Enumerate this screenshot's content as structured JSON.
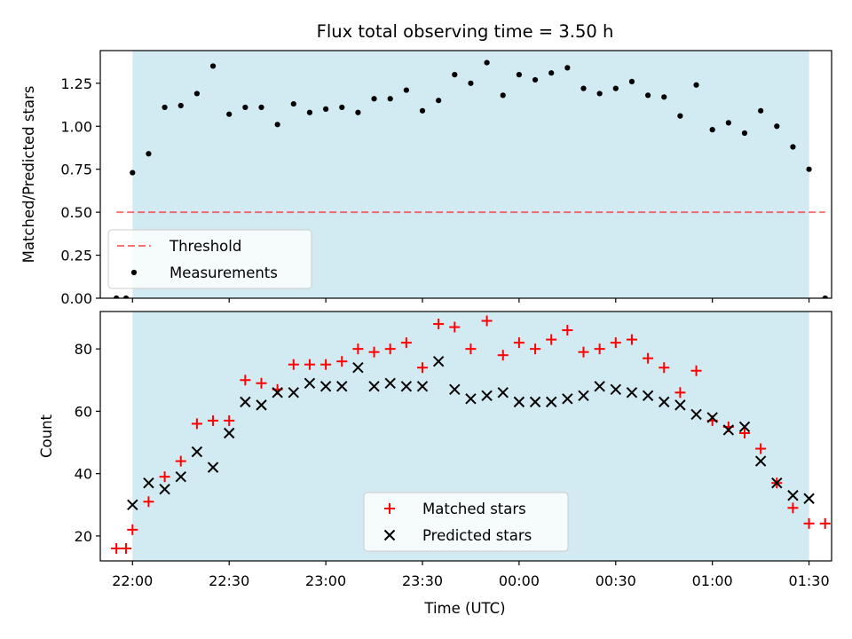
{
  "title": "Flux total observing time = 3.50 h",
  "xlabel": "Time (UTC)",
  "x_tick_labels": [
    "22:00",
    "22:30",
    "23:00",
    "23:30",
    "00:00",
    "00:30",
    "01:00",
    "01:30"
  ],
  "colors": {
    "shade": "#add8e6",
    "threshold": "#ff0000",
    "measurements": "#000000",
    "matched": "#ff0000",
    "predicted": "#000000"
  },
  "chart_data": [
    {
      "type": "scatter",
      "ylabel": "Matched/Predicted stars",
      "xlim": [
        "21:50",
        "01:37"
      ],
      "ylim": [
        0,
        1.44
      ],
      "y_ticks": [
        "0.00",
        "0.25",
        "0.50",
        "0.75",
        "1.00",
        "1.25"
      ],
      "shaded_region": [
        "22:00",
        "01:30"
      ],
      "legend": {
        "position": "lower-left",
        "entries": [
          "Threshold",
          "Measurements"
        ]
      },
      "threshold": {
        "name": "Threshold",
        "y": 0.5,
        "x_range": [
          "21:55",
          "01:35"
        ],
        "style": "dashed"
      },
      "series": [
        {
          "name": "Measurements",
          "x": [
            "21:55",
            "21:58",
            "22:00",
            "22:05",
            "22:10",
            "22:15",
            "22:20",
            "22:25",
            "22:30",
            "22:35",
            "22:40",
            "22:45",
            "22:50",
            "22:55",
            "23:00",
            "23:05",
            "23:10",
            "23:15",
            "23:20",
            "23:25",
            "23:30",
            "23:35",
            "23:40",
            "23:45",
            "23:50",
            "23:55",
            "00:00",
            "00:05",
            "00:10",
            "00:15",
            "00:20",
            "00:25",
            "00:30",
            "00:35",
            "00:40",
            "00:45",
            "00:50",
            "00:55",
            "01:00",
            "01:05",
            "01:10",
            "01:15",
            "01:20",
            "01:25",
            "01:30",
            "01:35"
          ],
          "y": [
            0.0,
            0.0,
            0.73,
            0.84,
            1.11,
            1.12,
            1.19,
            1.35,
            1.07,
            1.11,
            1.11,
            1.01,
            1.13,
            1.08,
            1.1,
            1.11,
            1.08,
            1.16,
            1.16,
            1.21,
            1.09,
            1.15,
            1.3,
            1.25,
            1.37,
            1.18,
            1.3,
            1.27,
            1.31,
            1.34,
            1.22,
            1.19,
            1.22,
            1.26,
            1.18,
            1.17,
            1.06,
            1.24,
            0.98,
            1.02,
            0.96,
            1.09,
            1.0,
            0.88,
            0.75,
            0.0
          ]
        }
      ]
    },
    {
      "type": "scatter",
      "ylabel": "Count",
      "xlim": [
        "21:50",
        "01:37"
      ],
      "ylim": [
        12,
        92
      ],
      "y_ticks": [
        "20",
        "40",
        "60",
        "80"
      ],
      "shaded_region": [
        "22:00",
        "01:30"
      ],
      "legend": {
        "position": "lower-center",
        "entries": [
          "Matched stars",
          "Predicted stars"
        ]
      },
      "series": [
        {
          "name": "Matched stars",
          "marker": "+",
          "x": [
            "21:55",
            "21:58",
            "22:00",
            "22:05",
            "22:10",
            "22:15",
            "22:20",
            "22:25",
            "22:30",
            "22:35",
            "22:40",
            "22:45",
            "22:50",
            "22:55",
            "23:00",
            "23:05",
            "23:10",
            "23:15",
            "23:20",
            "23:25",
            "23:30",
            "23:35",
            "23:40",
            "23:45",
            "23:50",
            "23:55",
            "00:00",
            "00:05",
            "00:10",
            "00:15",
            "00:20",
            "00:25",
            "00:30",
            "00:35",
            "00:40",
            "00:45",
            "00:50",
            "00:55",
            "01:00",
            "01:05",
            "01:10",
            "01:15",
            "01:20",
            "01:25",
            "01:30",
            "01:35"
          ],
          "y": [
            16,
            16,
            22,
            31,
            39,
            44,
            56,
            57,
            57,
            70,
            69,
            67,
            75,
            75,
            75,
            76,
            80,
            79,
            80,
            82,
            74,
            88,
            87,
            80,
            89,
            78,
            82,
            80,
            83,
            86,
            79,
            80,
            82,
            83,
            77,
            74,
            66,
            73,
            57,
            55,
            53,
            48,
            37,
            29,
            24,
            24
          ]
        },
        {
          "name": "Predicted stars",
          "marker": "x",
          "x": [
            "22:00",
            "22:05",
            "22:10",
            "22:15",
            "22:20",
            "22:25",
            "22:30",
            "22:35",
            "22:40",
            "22:45",
            "22:50",
            "22:55",
            "23:00",
            "23:05",
            "23:10",
            "23:15",
            "23:20",
            "23:25",
            "23:30",
            "23:35",
            "23:40",
            "23:45",
            "23:50",
            "23:55",
            "00:00",
            "00:05",
            "00:10",
            "00:15",
            "00:20",
            "00:25",
            "00:30",
            "00:35",
            "00:40",
            "00:45",
            "00:50",
            "00:55",
            "01:00",
            "01:05",
            "01:10",
            "01:15",
            "01:20",
            "01:25",
            "01:30"
          ],
          "y": [
            30,
            37,
            35,
            39,
            47,
            42,
            53,
            63,
            62,
            66,
            66,
            69,
            68,
            68,
            74,
            68,
            69,
            68,
            68,
            76,
            67,
            64,
            65,
            66,
            63,
            63,
            63,
            64,
            65,
            68,
            67,
            66,
            65,
            63,
            62,
            59,
            58,
            54,
            55,
            44,
            37,
            33,
            32
          ]
        }
      ]
    }
  ]
}
